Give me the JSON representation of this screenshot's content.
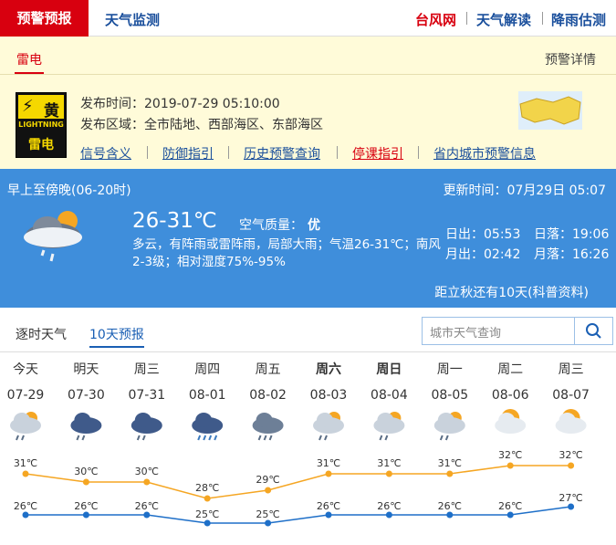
{
  "nav": {
    "active_tab": "预警预报",
    "tab": "天气监测",
    "links": [
      "台风网",
      "天气解读",
      "降雨估测"
    ]
  },
  "warning": {
    "tab": "雷电",
    "detail_link": "预警详情",
    "signal": {
      "level": "黄",
      "label": "LIGHTNING",
      "name": "雷电"
    },
    "issue_time": "发布时间：2019-07-29 05:10:00",
    "issue_area": "发布区域：全市陆地、西部海区、东部海区",
    "links": [
      "信号含义",
      "防御指引",
      "历史预警查询",
      "停课指引",
      "省内城市预警信息"
    ]
  },
  "today": {
    "period": "早上至傍晚(06-20时)",
    "update_time": "更新时间：07月29日 05:07",
    "temperature": "26-31℃",
    "air_quality_label": "空气质量：",
    "air_quality": "优",
    "description": "多云，有阵雨或雷阵雨，局部大雨；气温26-31℃；南风2-3级；相对湿度75%-95%",
    "sunrise": "日出：05:53",
    "sunset": "日落：19:06",
    "moonrise": "月出：02:42",
    "moonset": "月落：16:26",
    "solar_term": "距立秋还有10天(科普资料)"
  },
  "tabs": [
    "逐时天气",
    "10天预报"
  ],
  "search_placeholder": "城市天气查询",
  "forecast": {
    "weekdays": [
      "今天",
      "明天",
      "周三",
      "周四",
      "周五",
      "周六",
      "周日",
      "周一",
      "周二",
      "周三"
    ],
    "dates": [
      "07-29",
      "07-30",
      "07-31",
      "08-01",
      "08-02",
      "08-03",
      "08-04",
      "08-05",
      "08-06",
      "08-07"
    ],
    "highs": [
      31,
      30,
      30,
      28,
      29,
      31,
      31,
      31,
      32,
      32
    ],
    "high_labels": [
      "31℃",
      "30℃",
      "30℃",
      "28℃",
      "29℃",
      "31℃",
      "31℃",
      "31℃",
      "32℃",
      "32℃"
    ],
    "lows": [
      26,
      26,
      26,
      25,
      25,
      26,
      26,
      26,
      26,
      27
    ],
    "low_labels": [
      "26℃",
      "26℃",
      "26℃",
      "25℃",
      "25℃",
      "26℃",
      "26℃",
      "26℃",
      "26℃",
      "27℃"
    ]
  }
}
